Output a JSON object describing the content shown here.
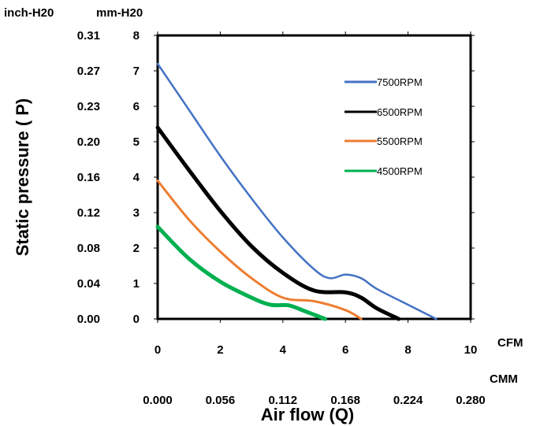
{
  "chart_data": {
    "type": "line",
    "ylabel": "Static  pressure ( P)",
    "xlabel": "Air flow (Q)",
    "units": {
      "inch_h2o": "inch-H20",
      "mm_h2o": "mm-H20",
      "cfm": "CFM",
      "cmm": "CMM"
    },
    "x_ticks_cfm": [
      "0",
      "2",
      "4",
      "6",
      "8",
      "10"
    ],
    "x_ticks_cmm": [
      "0.000",
      "0.056",
      "0.112",
      "0.168",
      "0.224",
      "0.280"
    ],
    "y_ticks_mm": [
      "0",
      "1",
      "2",
      "3",
      "4",
      "5",
      "6",
      "7",
      "8"
    ],
    "y_ticks_inch": [
      "0.00",
      "0.04",
      "0.08",
      "0.12",
      "0.16",
      "0.20",
      "0.23",
      "0.27",
      "0.31"
    ],
    "xlim": [
      0,
      10
    ],
    "ylim": [
      0,
      8
    ],
    "grid": false,
    "legend_position": "top-right",
    "series": [
      {
        "name": "7500RPM",
        "color": "#4472C4",
        "x": [
          0,
          1,
          2,
          3,
          4,
          5,
          5.5,
          6,
          6.5,
          7,
          8,
          8.9
        ],
        "y": [
          7.2,
          5.9,
          4.6,
          3.4,
          2.3,
          1.4,
          1.15,
          1.25,
          1.15,
          0.85,
          0.4,
          0
        ]
      },
      {
        "name": "6500RPM",
        "color": "#000000",
        "x": [
          0,
          1,
          2,
          3,
          4,
          5,
          6,
          6.5,
          7,
          7.7
        ],
        "y": [
          5.4,
          4.2,
          3.05,
          2.05,
          1.3,
          0.8,
          0.75,
          0.6,
          0.3,
          0
        ]
      },
      {
        "name": "5500RPM",
        "color": "#ED7D31",
        "x": [
          0,
          1,
          2,
          3,
          4,
          5,
          6,
          6.5
        ],
        "y": [
          3.9,
          2.8,
          1.9,
          1.15,
          0.6,
          0.5,
          0.25,
          0
        ]
      },
      {
        "name": "4500RPM",
        "color": "#00B050",
        "x": [
          0,
          1,
          2,
          3,
          3.6,
          4.2,
          4.7,
          5.35
        ],
        "y": [
          2.6,
          1.7,
          1.05,
          0.6,
          0.4,
          0.38,
          0.22,
          0
        ]
      }
    ]
  }
}
